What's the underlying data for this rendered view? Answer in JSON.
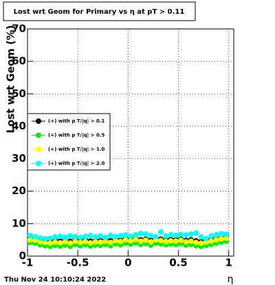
{
  "chart_data": {
    "type": "scatter",
    "title": "Lost wrt Geom for Primary vs   η at pT > 0.11",
    "x_label": "η",
    "y_label": "Lost wrt Geom (%)",
    "timestamp": "Thu Nov 24 10:10:24 2022",
    "xlim": [
      -1,
      1.05
    ],
    "ylim": [
      0,
      70
    ],
    "xticks": [
      -1,
      -0.5,
      0,
      0.5,
      1
    ],
    "yticks": [
      0,
      10,
      20,
      30,
      40,
      50,
      60,
      70
    ],
    "grid": true,
    "legend": "left",
    "x": [
      -0.975,
      -0.925,
      -0.875,
      -0.825,
      -0.775,
      -0.725,
      -0.675,
      -0.625,
      -0.575,
      -0.525,
      -0.475,
      -0.425,
      -0.375,
      -0.325,
      -0.275,
      -0.225,
      -0.175,
      -0.125,
      -0.075,
      -0.025,
      0.025,
      0.075,
      0.125,
      0.175,
      0.225,
      0.275,
      0.325,
      0.375,
      0.425,
      0.475,
      0.525,
      0.575,
      0.625,
      0.675,
      0.725,
      0.775,
      0.825,
      0.875,
      0.925,
      0.975
    ],
    "series": [
      {
        "name": "(+) with p T/|q| > 0.1",
        "color": "#000000",
        "values": [
          5.2,
          5.0,
          4.8,
          4.6,
          4.5,
          4.7,
          4.6,
          4.8,
          4.5,
          5.0,
          4.7,
          4.9,
          4.6,
          4.8,
          4.7,
          5.0,
          4.7,
          5.1,
          4.9,
          5.3,
          5.1,
          5.4,
          5.0,
          5.2,
          4.9,
          5.3,
          5.2,
          4.9,
          5.1,
          5.0,
          5.2,
          4.8,
          5.0,
          4.7,
          4.5,
          4.7,
          5.0,
          5.3,
          5.5,
          5.8
        ]
      },
      {
        "name": "(+) with p T/|q| > 0.5",
        "color": "#00ee00",
        "values": [
          4.2,
          4.0,
          3.5,
          3.2,
          3.0,
          3.3,
          3.1,
          3.4,
          3.0,
          3.6,
          3.2,
          3.5,
          3.1,
          3.4,
          3.3,
          3.6,
          3.2,
          3.8,
          3.5,
          4.0,
          3.7,
          4.1,
          3.6,
          3.9,
          3.4,
          4.0,
          3.8,
          3.5,
          3.7,
          3.6,
          3.9,
          3.4,
          3.6,
          3.2,
          3.0,
          3.3,
          3.6,
          4.0,
          4.3,
          4.6
        ]
      },
      {
        "name": "(+) with p T/|q| > 1.0",
        "color": "#ffff00",
        "values": [
          5.0,
          4.9,
          4.4,
          4.2,
          4.0,
          4.3,
          4.1,
          4.5,
          4.0,
          4.6,
          4.2,
          4.5,
          4.1,
          4.4,
          4.3,
          4.6,
          4.2,
          4.8,
          4.5,
          5.0,
          4.7,
          5.1,
          4.6,
          4.9,
          4.4,
          5.0,
          4.8,
          4.5,
          4.7,
          4.6,
          4.9,
          4.4,
          4.6,
          4.2,
          4.0,
          4.3,
          4.6,
          5.0,
          5.3,
          5.5
        ]
      },
      {
        "name": "(+) with p T/|q| > 2.0",
        "color": "#00ffff",
        "values": [
          6.3,
          6.0,
          5.6,
          5.3,
          5.5,
          5.9,
          6.1,
          5.8,
          6.2,
          6.0,
          5.7,
          6.1,
          6.3,
          5.9,
          6.2,
          5.8,
          6.4,
          6.0,
          6.3,
          6.5,
          6.1,
          6.6,
          7.0,
          6.8,
          6.3,
          6.0,
          7.4,
          6.2,
          6.6,
          6.4,
          6.7,
          6.5,
          6.8,
          7.1,
          5.9,
          5.4,
          6.2,
          6.6,
          6.9,
          6.7
        ]
      }
    ]
  }
}
